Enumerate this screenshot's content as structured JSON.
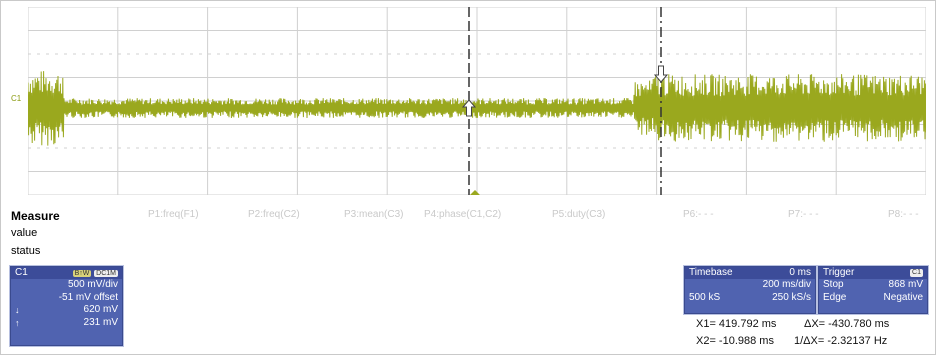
{
  "trace": {
    "channel_label": "C1",
    "color": "#9aa81e",
    "grid_color": "#d0d0d0",
    "cursor_color": "#333333"
  },
  "measure": {
    "title": "Measure",
    "rows": [
      "value",
      "status"
    ],
    "params": [
      "P1:freq(F1)",
      "P2:freq(C2)",
      "P3:mean(C3)",
      "P4:phase(C1,C2)",
      "P5:duty(C3)",
      "P6:- - -",
      "P7:- - -",
      "P8:- - -"
    ]
  },
  "c1": {
    "name": "C1",
    "tag1": "B↑W",
    "tag2": "DC1M",
    "scale": "500 mV/div",
    "offset": "-51 mV offset",
    "cursor1_arrow": "↓",
    "cursor1": "620 mV",
    "cursor2_arrow": "↑",
    "cursor2": "231 mV"
  },
  "timebase": {
    "title": "Timebase",
    "delay": "0 ms",
    "div": "200 ms/div",
    "samples": "500 kS",
    "rate": "250 kS/s"
  },
  "trigger": {
    "title": "Trigger",
    "tag": "C1",
    "mode": "Stop",
    "level": "868 mV",
    "type": "Edge",
    "slope": "Negative"
  },
  "cursors": {
    "x1": "X1= 419.792 ms",
    "dx": "ΔX= -430.780 ms",
    "x2": "X2= -10.988 ms",
    "inv_dx": "1/ΔX= -2.32137 Hz"
  }
}
